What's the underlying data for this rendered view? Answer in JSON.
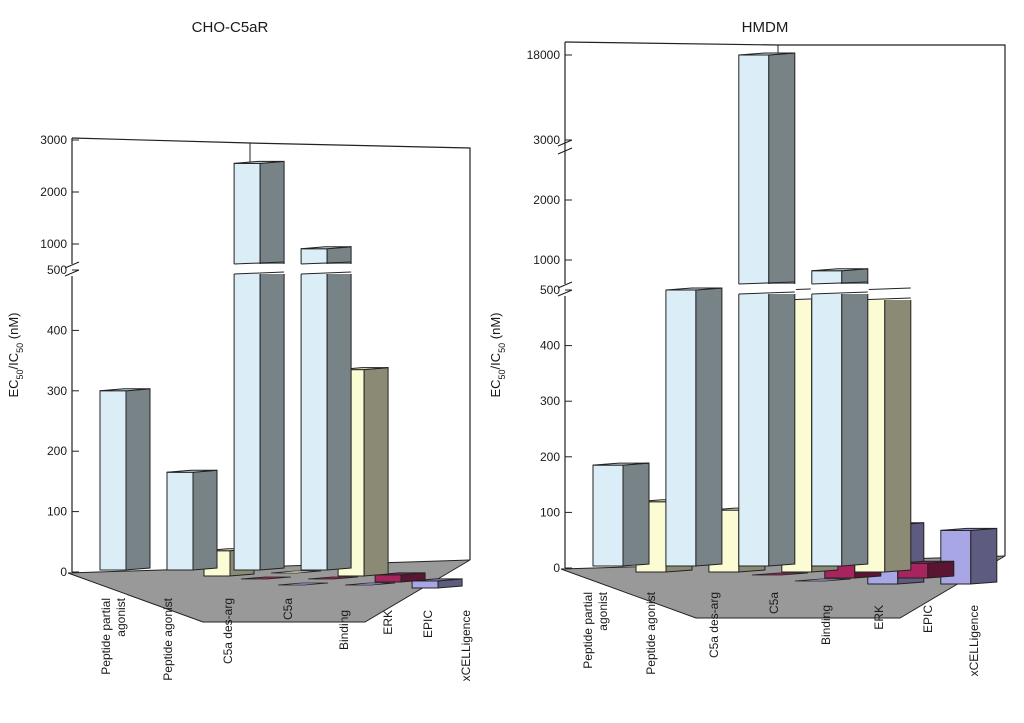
{
  "chart_data": [
    {
      "type": "bar",
      "title": "CHO-C5aR",
      "ylabel": "EC50/IC50 (nM)",
      "ylabel_parts": {
        "main": "EC",
        "sub1": "50",
        "mid": "/IC",
        "sub2": "50",
        "unit": " (nM)"
      },
      "axis_break": true,
      "lower_ticks": [
        "0",
        "100",
        "200",
        "300",
        "400",
        "500"
      ],
      "upper_ticks": [
        "1000",
        "2000",
        "3000"
      ],
      "categories": [
        "Peptide partial agonist",
        "Peptide agonist",
        "C5a des-arg",
        "C5a"
      ],
      "category_lines": [
        [
          "Peptide partial",
          "agonist"
        ],
        [
          "Peptide agonist"
        ],
        [
          "C5a des-arg"
        ],
        [
          "C5a"
        ]
      ],
      "assays": [
        "Binding",
        "ERK",
        "EPIC",
        "xCELLigence"
      ],
      "series": [
        {
          "name": "Binding",
          "values": [
            300,
            165,
            2550,
            910
          ]
        },
        {
          "name": "ERK",
          "values": [
            null,
            45,
            3,
            345
          ]
        },
        {
          "name": "EPIC",
          "values": [
            null,
            0,
            0,
            15
          ]
        },
        {
          "name": "xCELLigence",
          "values": [
            null,
            0,
            0,
            15
          ]
        }
      ],
      "colors": {
        "Binding": "#dbeef8",
        "ERK": "#fcfcd4",
        "EPIC": "#a8245f",
        "xCELLigence": "#a9a6e6"
      }
    },
    {
      "type": "bar",
      "title": "HMDM",
      "ylabel": "EC50/IC50 (nM)",
      "ylabel_parts": {
        "main": "EC",
        "sub1": "50",
        "mid": "/IC",
        "sub2": "50",
        "unit": " (nM)"
      },
      "axis_break": true,
      "lower_ticks": [
        "0",
        "100",
        "200",
        "300",
        "400",
        "500"
      ],
      "upper_ticks": [
        "1000",
        "2000",
        "3000",
        "18000"
      ],
      "categories": [
        "Peptide partial agonist",
        "Peptide agonist",
        "C5a des-arg",
        "C5a"
      ],
      "category_lines": [
        [
          "Peptide partial",
          "agonist"
        ],
        [
          "Peptide agonist"
        ],
        [
          "C5a des-arg"
        ],
        [
          "C5a"
        ]
      ],
      "assays": [
        "Binding",
        "ERK",
        "EPIC",
        "xCELLigence"
      ],
      "series": [
        {
          "name": "Binding",
          "values": [
            185,
            500,
            18000,
            820
          ]
        },
        {
          "name": "ERK",
          "values": [
            130,
            115,
            520,
            520
          ]
        },
        {
          "name": "EPIC",
          "values": [
            null,
            0,
            55,
            30
          ]
        },
        {
          "name": "xCELLigence",
          "values": [
            null,
            0,
            110,
            100
          ]
        }
      ],
      "colors": {
        "Binding": "#dbeef8",
        "ERK": "#fcfcd4",
        "EPIC": "#a8245f",
        "xCELLigence": "#a9a6e6"
      }
    }
  ]
}
